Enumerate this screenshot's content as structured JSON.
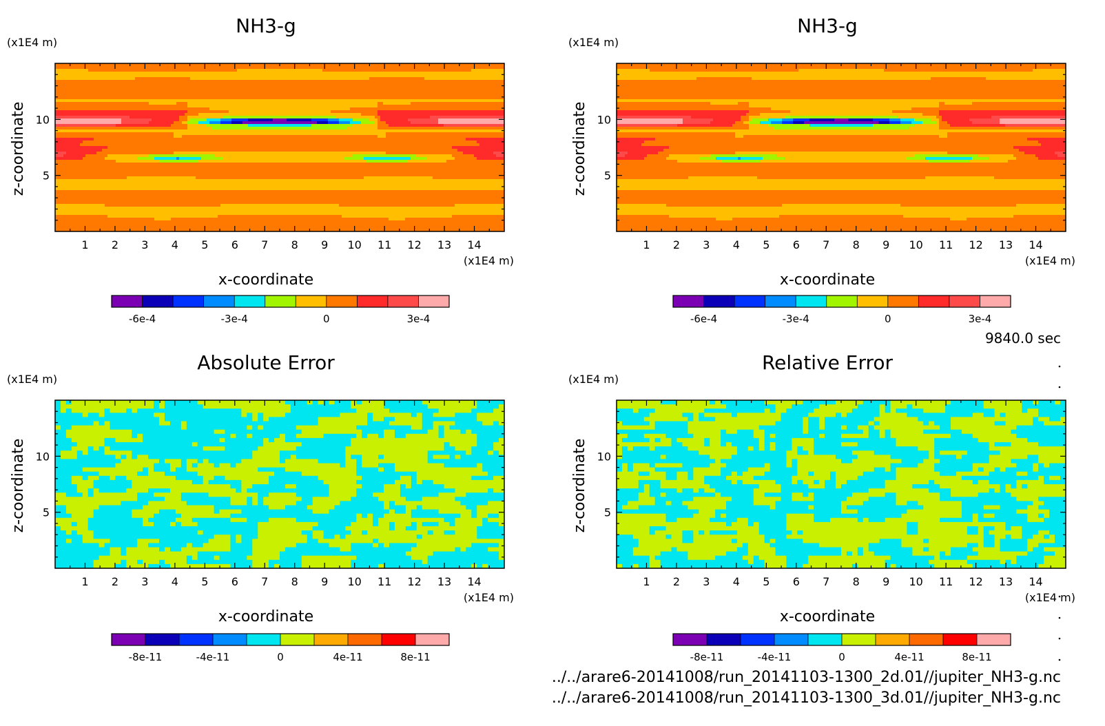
{
  "time_label": "9840.0 sec",
  "file_paths": [
    "../../arare6-20141008/run_20141103-1300_2d.01//jupiter_NH3-g.nc",
    "../../arare6-20141008/run_20141103-1300_3d.01//jupiter_NH3-g.nc"
  ],
  "colors": {
    "contour_scale": [
      "#7b00b4",
      "#0b00b8",
      "#0032ff",
      "#008cff",
      "#00e6f0",
      "#a2f500",
      "#ffbe00",
      "#ff7800",
      "#ff2a2a",
      "#ff4a4a",
      "#ffaaaa"
    ],
    "error_scale": [
      "#7b00b4",
      "#0b00b8",
      "#0032ff",
      "#008cff",
      "#00e6f0",
      "#c8f000",
      "#ffaa00",
      "#ff6a00",
      "#ff0000",
      "#ffaaaa"
    ]
  },
  "chart_data": [
    {
      "type": "heatmap",
      "title": "NH3-g",
      "xlabel": "x-coordinate",
      "ylabel": "z-coordinate",
      "x_unit": "(x1E4 m)",
      "z_unit": "(x1E4 m)",
      "xlim": [
        0,
        15
      ],
      "ylim": [
        0,
        15
      ],
      "x_ticks": [
        1,
        2,
        3,
        4,
        5,
        6,
        7,
        8,
        9,
        10,
        11,
        12,
        13,
        14
      ],
      "y_ticks": [
        5,
        10
      ],
      "colorbar_ticks": [
        "-6e-4",
        "-3e-4",
        "0",
        "3e-4"
      ],
      "colorbar_range": [
        -0.0007,
        0.0004
      ],
      "colorbar_levels": [
        -0.0007,
        -0.0006,
        -0.0005,
        -0.0004,
        -0.0003,
        -0.0002,
        -0.0001,
        0,
        0.0001,
        0.0002,
        0.0003,
        0.0004
      ],
      "field": "model"
    },
    {
      "type": "heatmap",
      "title": "NH3-g",
      "xlabel": "x-coordinate",
      "ylabel": "z-coordinate",
      "x_unit": "(x1E4 m)",
      "z_unit": "(x1E4 m)",
      "xlim": [
        0,
        15
      ],
      "ylim": [
        0,
        15
      ],
      "x_ticks": [
        1,
        2,
        3,
        4,
        5,
        6,
        7,
        8,
        9,
        10,
        11,
        12,
        13,
        14
      ],
      "y_ticks": [
        5,
        10
      ],
      "colorbar_ticks": [
        "-6e-4",
        "-3e-4",
        "0",
        "3e-4"
      ],
      "colorbar_range": [
        -0.0007,
        0.0004
      ],
      "colorbar_levels": [
        -0.0007,
        -0.0006,
        -0.0005,
        -0.0004,
        -0.0003,
        -0.0002,
        -0.0001,
        0,
        0.0001,
        0.0002,
        0.0003,
        0.0004
      ],
      "field": "model"
    },
    {
      "type": "heatmap",
      "title": "Absolute Error",
      "xlabel": "x-coordinate",
      "ylabel": "z-coordinate",
      "x_unit": "(x1E4 m)",
      "z_unit": "(x1E4 m)",
      "xlim": [
        0,
        15
      ],
      "ylim": [
        0,
        15
      ],
      "x_ticks": [
        1,
        2,
        3,
        4,
        5,
        6,
        7,
        8,
        9,
        10,
        11,
        12,
        13,
        14
      ],
      "y_ticks": [
        5,
        10
      ],
      "colorbar_ticks": [
        "-8e-11",
        "-4e-11",
        "0",
        "4e-11",
        "8e-11"
      ],
      "colorbar_range": [
        -1e-10,
        1e-10
      ],
      "colorbar_levels": [
        -1e-10,
        -8e-11,
        -6e-11,
        -4e-11,
        -2e-11,
        0,
        2e-11,
        4e-11,
        6e-11,
        8e-11,
        1e-10
      ],
      "field": "noise",
      "noise_values": [
        -1e-11,
        1e-11
      ]
    },
    {
      "type": "heatmap",
      "title": "Relative Error",
      "xlabel": "x-coordinate",
      "ylabel": "z-coordinate",
      "x_unit": "(x1E4 m)",
      "z_unit": "(x1E4 m)",
      "xlim": [
        0,
        15
      ],
      "ylim": [
        0,
        15
      ],
      "x_ticks": [
        1,
        2,
        3,
        4,
        5,
        6,
        7,
        8,
        9,
        10,
        11,
        12,
        13,
        14
      ],
      "y_ticks": [
        5,
        10
      ],
      "colorbar_ticks": [
        "-8e-11",
        "-4e-11",
        "0",
        "4e-11",
        "8e-11"
      ],
      "colorbar_range": [
        -1e-10,
        1e-10
      ],
      "colorbar_levels": [
        -1e-10,
        -8e-11,
        -6e-11,
        -4e-11,
        -2e-11,
        0,
        2e-11,
        4e-11,
        6e-11,
        8e-11,
        1e-10
      ],
      "field": "noise",
      "noise_values": [
        -1e-11,
        1e-11
      ]
    }
  ]
}
